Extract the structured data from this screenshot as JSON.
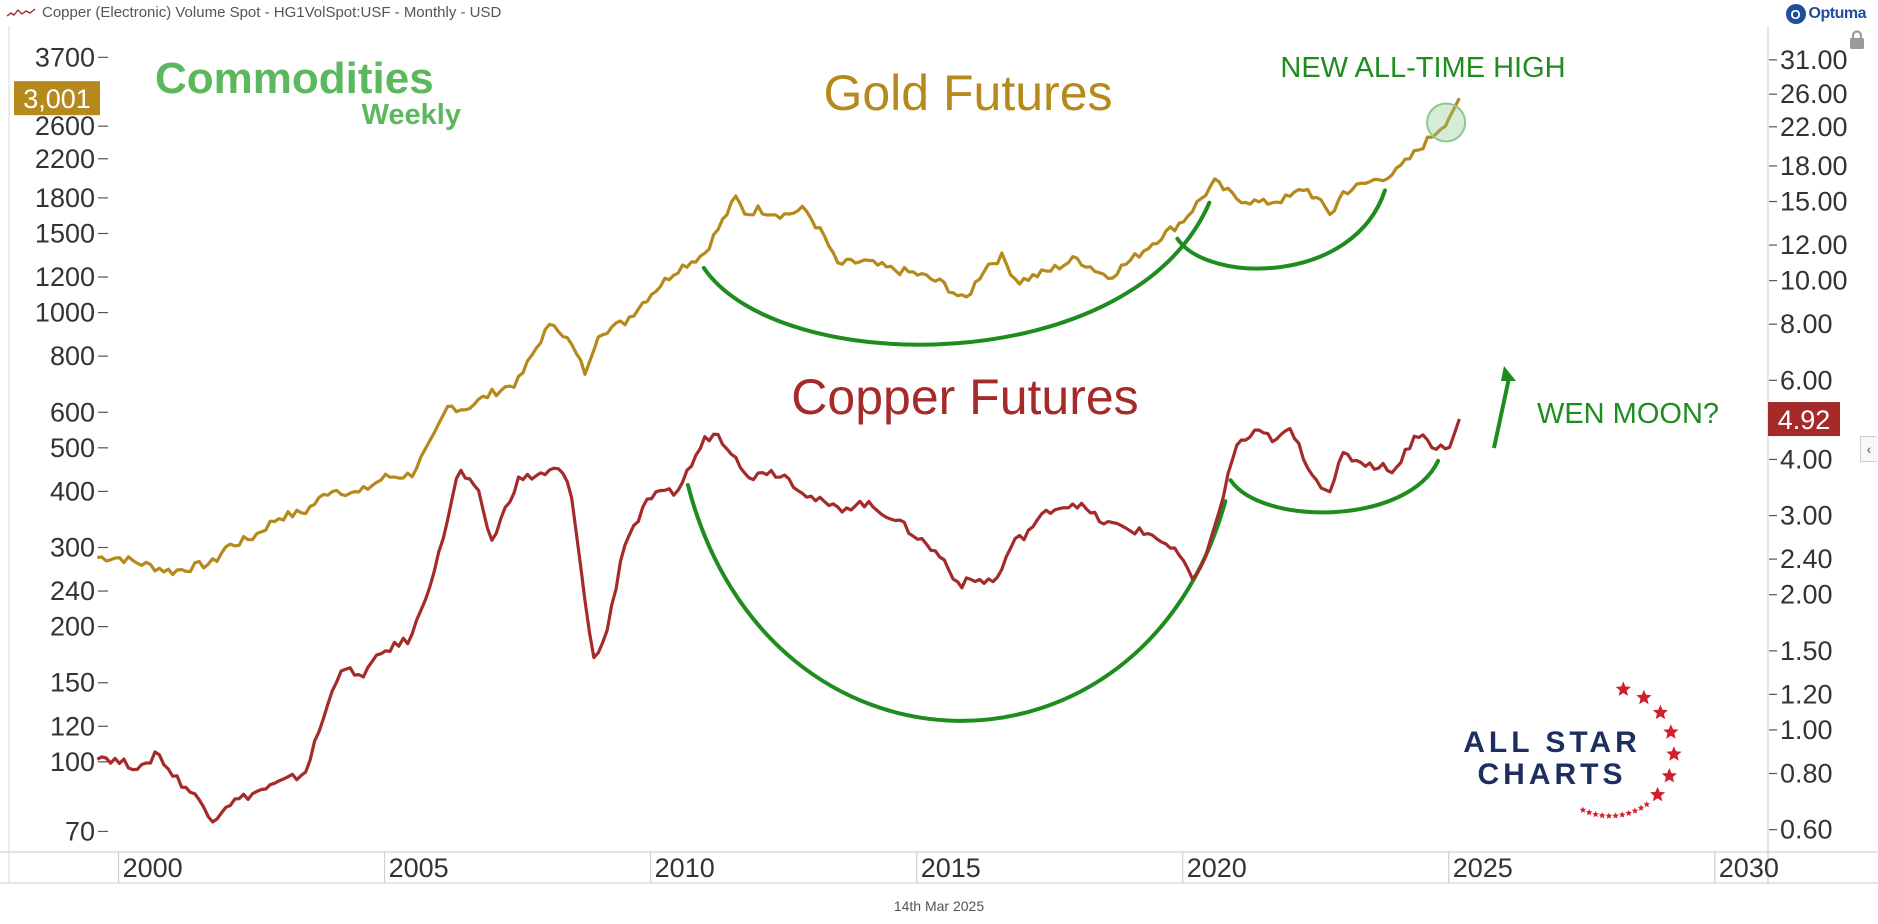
{
  "header": {
    "title": "Copper (Electronic) Volume Spot - HG1VolSpot:USF - Monthly - USD",
    "brand": "Optuma"
  },
  "footer": {
    "date": "14th Mar 2025"
  },
  "colors": {
    "gold": "#b5891c",
    "copper": "#a52a2a",
    "green": "#1e8c1e",
    "logo_green": "#5cb85c",
    "navy": "#1c2f5e",
    "star_red": "#d0202c"
  },
  "logos": {
    "commodities": {
      "line1": "Commodities",
      "line2": "Weekly"
    },
    "allstar": {
      "line1": "ALL STAR",
      "line2": "CHARTS"
    }
  },
  "chart_data": {
    "type": "line",
    "title": "",
    "x_axis": {
      "range": [
        1999.5,
        2031
      ],
      "ticks": [
        "2000",
        "2005",
        "2010",
        "2015",
        "2020",
        "2025",
        "2030"
      ],
      "grid": false
    },
    "y_left": {
      "scale": "log",
      "range": [
        63,
        4300
      ],
      "ticks": [
        "3700",
        "2600",
        "2200",
        "1800",
        "1500",
        "1200",
        "1000",
        "800",
        "600",
        "500",
        "400",
        "300",
        "240",
        "200",
        "150",
        "120",
        "100",
        "70"
      ]
    },
    "y_right": {
      "scale": "log",
      "range": [
        0.535,
        36.5
      ],
      "ticks": [
        "31.00",
        "26.00",
        "22.00",
        "18.00",
        "15.00",
        "12.00",
        "10.00",
        "8.00",
        "6.00",
        "4.00",
        "3.00",
        "2.40",
        "2.00",
        "1.50",
        "1.20",
        "1.00",
        "0.80",
        "0.60"
      ]
    },
    "last_values": {
      "gold": "3,001",
      "copper": "4.92"
    },
    "series": [
      {
        "name": "Gold Futures",
        "axis": "left",
        "x": [
          1999.6,
          2000.0,
          2000.5,
          2001.0,
          2001.3,
          2001.8,
          2002.0,
          2002.5,
          2003.0,
          2003.5,
          2004.0,
          2004.5,
          2005.0,
          2005.5,
          2005.9,
          2006.2,
          2006.5,
          2007.0,
          2007.5,
          2008.0,
          2008.2,
          2008.5,
          2008.8,
          2009.0,
          2009.5,
          2010.0,
          2010.5,
          2011.0,
          2011.6,
          2011.8,
          2012.0,
          2012.5,
          2012.9,
          2013.3,
          2013.5,
          2014.0,
          2014.5,
          2015.0,
          2015.5,
          2015.9,
          2016.3,
          2016.6,
          2016.9,
          2017.5,
          2018.0,
          2018.6,
          2019.0,
          2019.5,
          2020.0,
          2020.6,
          2021.0,
          2021.5,
          2022.0,
          2022.3,
          2022.8,
          2023.0,
          2023.5,
          2024.0,
          2024.5,
          2025.0,
          2025.2
        ],
        "values": [
          285,
          285,
          275,
          265,
          270,
          278,
          300,
          315,
          350,
          360,
          405,
          395,
          430,
          435,
          520,
          620,
          610,
          660,
          700,
          900,
          950,
          850,
          725,
          900,
          950,
          1100,
          1250,
          1350,
          1800,
          1650,
          1700,
          1650,
          1700,
          1450,
          1280,
          1300,
          1250,
          1220,
          1160,
          1060,
          1270,
          1330,
          1170,
          1240,
          1320,
          1200,
          1300,
          1450,
          1600,
          1950,
          1800,
          1750,
          1800,
          1900,
          1650,
          1850,
          1950,
          2050,
          2350,
          2700,
          3001
        ]
      },
      {
        "name": "Copper Futures",
        "axis": "right",
        "x": [
          1999.6,
          2000.0,
          2000.5,
          2000.7,
          2001.0,
          2001.5,
          2001.8,
          2002.0,
          2002.5,
          2003.0,
          2003.5,
          2004.0,
          2004.2,
          2004.5,
          2005.0,
          2005.5,
          2006.0,
          2006.4,
          2006.8,
          2007.0,
          2007.5,
          2007.9,
          2008.3,
          2008.5,
          2008.7,
          2008.95,
          2009.2,
          2009.5,
          2010.0,
          2010.5,
          2011.0,
          2011.2,
          2011.6,
          2011.9,
          2012.0,
          2012.5,
          2013.0,
          2013.5,
          2014.0,
          2014.5,
          2015.0,
          2015.5,
          2015.8,
          2016.0,
          2016.5,
          2016.8,
          2017.0,
          2017.5,
          2018.0,
          2018.5,
          2019.0,
          2019.5,
          2020.0,
          2020.2,
          2020.6,
          2021.0,
          2021.4,
          2021.8,
          2022.0,
          2022.5,
          2022.8,
          2023.0,
          2023.5,
          2024.0,
          2024.4,
          2024.7,
          2025.0,
          2025.2
        ],
        "values": [
          0.88,
          0.85,
          0.82,
          0.9,
          0.8,
          0.7,
          0.63,
          0.68,
          0.72,
          0.76,
          0.8,
          1.2,
          1.4,
          1.3,
          1.5,
          1.6,
          2.4,
          3.8,
          3.3,
          2.6,
          3.6,
          3.7,
          3.8,
          3.4,
          2.2,
          1.4,
          1.7,
          2.6,
          3.3,
          3.4,
          4.4,
          4.6,
          4.1,
          3.5,
          3.8,
          3.7,
          3.3,
          3.1,
          3.2,
          3.0,
          2.7,
          2.4,
          2.1,
          2.15,
          2.15,
          2.6,
          2.7,
          3.1,
          3.2,
          2.9,
          2.8,
          2.7,
          2.4,
          2.1,
          2.8,
          4.3,
          4.6,
          4.4,
          4.7,
          3.6,
          3.4,
          4.1,
          3.9,
          3.8,
          4.6,
          4.3,
          4.2,
          4.92
        ]
      }
    ],
    "annotations": [
      {
        "id": "gold-label",
        "text": "Gold Futures"
      },
      {
        "id": "copper-label",
        "text": "Copper Futures"
      },
      {
        "id": "ath",
        "text": "NEW ALL-TIME HIGH"
      },
      {
        "id": "moon",
        "text": "WEN MOON?"
      }
    ],
    "arcs": [
      {
        "name": "gold-cup-large",
        "series": "Gold Futures",
        "x0": 2011.0,
        "x1": 2020.5
      },
      {
        "name": "gold-cup-small",
        "series": "Gold Futures",
        "x0": 2019.9,
        "x1": 2023.8
      },
      {
        "name": "copper-cup-large",
        "series": "Copper Futures",
        "x0": 2010.7,
        "x1": 2020.8
      },
      {
        "name": "copper-cup-small",
        "series": "Copper Futures",
        "x0": 2020.9,
        "x1": 2024.8
      }
    ]
  }
}
